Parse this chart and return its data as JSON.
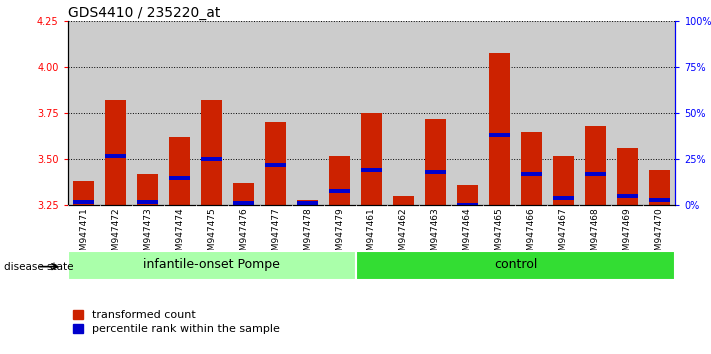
{
  "title": "GDS4410 / 235220_at",
  "samples": [
    "GSM947471",
    "GSM947472",
    "GSM947473",
    "GSM947474",
    "GSM947475",
    "GSM947476",
    "GSM947477",
    "GSM947478",
    "GSM947479",
    "GSM947461",
    "GSM947462",
    "GSM947463",
    "GSM947464",
    "GSM947465",
    "GSM947466",
    "GSM947467",
    "GSM947468",
    "GSM947469",
    "GSM947470"
  ],
  "red_values": [
    3.38,
    3.82,
    3.42,
    3.62,
    3.82,
    3.37,
    3.7,
    3.28,
    3.52,
    3.75,
    3.3,
    3.72,
    3.36,
    4.08,
    3.65,
    3.52,
    3.68,
    3.56,
    3.44
  ],
  "blue_values": [
    3.27,
    3.52,
    3.27,
    3.4,
    3.5,
    3.26,
    3.47,
    3.26,
    3.33,
    3.44,
    3.24,
    3.43,
    3.25,
    3.63,
    3.42,
    3.29,
    3.42,
    3.3,
    3.28
  ],
  "groups": [
    {
      "label": "infantile-onset Pompe",
      "start": 0,
      "end": 8,
      "color": "#aaffaa"
    },
    {
      "label": "control",
      "start": 9,
      "end": 18,
      "color": "#33dd33"
    }
  ],
  "ymin": 3.25,
  "ymax": 4.25,
  "yticks": [
    3.25,
    3.5,
    3.75,
    4.0,
    4.25
  ],
  "right_yticks": [
    0,
    25,
    50,
    75,
    100
  ],
  "bar_color": "#cc2200",
  "blue_color": "#0000cc",
  "bg_color": "#cccccc",
  "title_fontsize": 10,
  "tick_fontsize": 7,
  "group_label_fontsize": 9,
  "disease_state_label": "disease state",
  "legend_red": "transformed count",
  "legend_blue": "percentile rank within the sample"
}
